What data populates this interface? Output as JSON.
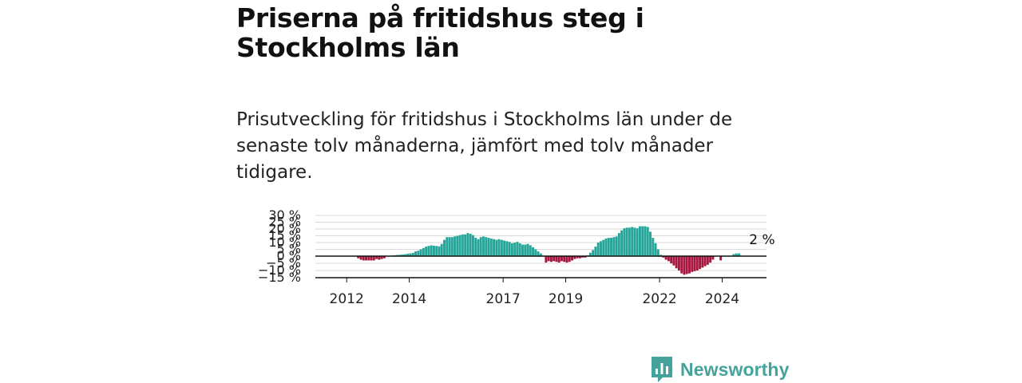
{
  "title": "Priserna på fritidshus steg i Stockholms län",
  "subtitle": "Prisutveckling för fritidshus i Stockholms län under de senaste tolv månaderna, jämfört med tolv månader tidigare.",
  "brand": {
    "name": "Newsworthy",
    "icon": "newsworthy-logo-icon",
    "color": "#45a39b"
  },
  "chart_data": {
    "type": "bar",
    "title": "",
    "xlabel": "",
    "ylabel": "",
    "x_start": "2011-01",
    "x_end": "2025-06",
    "x_ticks": [
      {
        "label": "2012",
        "date": "2012-01"
      },
      {
        "label": "2014",
        "date": "2014-01"
      },
      {
        "label": "2017",
        "date": "2017-01"
      },
      {
        "label": "2019",
        "date": "2019-01"
      },
      {
        "label": "2022",
        "date": "2022-01"
      },
      {
        "label": "2024",
        "date": "2024-01"
      }
    ],
    "y_ticks": [
      {
        "value": 30,
        "label": "30 %"
      },
      {
        "value": 25,
        "label": "25 %"
      },
      {
        "value": 20,
        "label": "20 %"
      },
      {
        "value": 15,
        "label": "15 %"
      },
      {
        "value": 10,
        "label": "10 %"
      },
      {
        "value": 5,
        "label": "5 %"
      },
      {
        "value": 0,
        "label": "0 %"
      },
      {
        "value": -5,
        "label": "−5 %"
      },
      {
        "value": -10,
        "label": "−10 %"
      },
      {
        "value": -15,
        "label": "−15 %"
      }
    ],
    "ylim": [
      -15,
      30
    ],
    "grid": true,
    "positive_color": "#26a69a",
    "negative_color": "#a8173f",
    "annotation": {
      "text": "2 %",
      "date": "2025-04"
    },
    "start_date": "2012-05",
    "values": [
      -1.5,
      -2.5,
      -3.0,
      -3.0,
      -3.0,
      -3.0,
      -3.0,
      -2.0,
      -2.5,
      -2.0,
      -1.5,
      0,
      0.3,
      0.5,
      0.7,
      0.9,
      1.0,
      1.2,
      1.4,
      1.8,
      2.0,
      2.4,
      3.5,
      4.0,
      5.0,
      6.0,
      7.0,
      7.5,
      8.0,
      7.7,
      7.5,
      7.2,
      9.0,
      12.0,
      14.0,
      14.0,
      14.0,
      14.5,
      15.0,
      15.5,
      16.0,
      16.0,
      17.0,
      16.5,
      15.5,
      13.5,
      12.5,
      14.0,
      14.5,
      14.0,
      13.5,
      13.0,
      12.5,
      12.0,
      12.5,
      12.0,
      11.5,
      11.0,
      10.5,
      9.5,
      10.0,
      10.5,
      9.5,
      8.5,
      8.5,
      9.0,
      8.0,
      6.5,
      5.0,
      3.5,
      2.0,
      0,
      -4.5,
      -3.5,
      -4.0,
      -3.5,
      -4.0,
      -4.5,
      -3.5,
      -4.0,
      -4.5,
      -4.0,
      -3.0,
      -2.0,
      -1.5,
      -1.5,
      -1.0,
      -1.0,
      0.5,
      2.5,
      4.5,
      7.0,
      10.0,
      11.0,
      12.0,
      13.0,
      13.5,
      13.5,
      14.0,
      14.5,
      17.0,
      19.0,
      20.5,
      21.0,
      21.0,
      21.5,
      21.0,
      20.5,
      22.0,
      22.0,
      22.0,
      21.5,
      18.0,
      13.5,
      9.5,
      5.0,
      1.0,
      -1.0,
      -2.5,
      -3.5,
      -5.0,
      -6.5,
      -8.5,
      -10.0,
      -12.0,
      -13.0,
      -12.5,
      -12.0,
      -11.0,
      -10.5,
      -10.0,
      -9.0,
      -8.0,
      -7.0,
      -6.0,
      -4.5,
      -2.5,
      0,
      0,
      -3.0,
      0,
      0,
      0,
      0,
      1.5,
      2.0,
      2.0,
      0
    ]
  }
}
